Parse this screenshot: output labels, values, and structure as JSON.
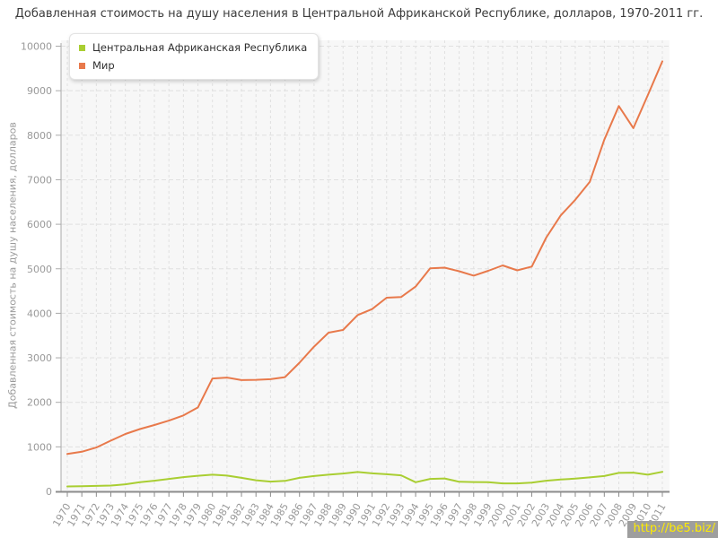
{
  "title": "Добавленная стоимость на душу населения в Центральной Африканской Республике, долларов, 1970-2011 гг.",
  "watermark": "http://be5.biz/",
  "chart_data": {
    "type": "line",
    "title": "Добавленная стоимость на душу населения в Центральной Африканской Республике, долларов, 1970-2011 гг.",
    "ylabel": "Добавленная стоимость на душу населения, долларов",
    "xlabel": "",
    "ylim": [
      0,
      10000
    ],
    "yticks": [
      0,
      1000,
      2000,
      3000,
      4000,
      5000,
      6000,
      7000,
      8000,
      9000,
      10000
    ],
    "grid": true,
    "legend_position": "top-left",
    "x": [
      1970,
      1971,
      1972,
      1973,
      1974,
      1975,
      1976,
      1977,
      1978,
      1979,
      1980,
      1981,
      1982,
      1983,
      1984,
      1985,
      1986,
      1987,
      1988,
      1989,
      1990,
      1991,
      1992,
      1993,
      1994,
      1995,
      1996,
      1997,
      1998,
      1999,
      2000,
      2001,
      2002,
      2003,
      2004,
      2005,
      2006,
      2007,
      2008,
      2009,
      2010,
      2011
    ],
    "series": [
      {
        "name": "Центральная Африканская Республика",
        "color": "#a9ce32",
        "values": [
          110,
          115,
          122,
          130,
          160,
          205,
          240,
          280,
          320,
          350,
          375,
          355,
          305,
          250,
          220,
          235,
          305,
          345,
          375,
          400,
          435,
          405,
          385,
          360,
          205,
          280,
          290,
          215,
          210,
          205,
          180,
          180,
          195,
          240,
          265,
          285,
          315,
          345,
          415,
          420,
          375,
          440
        ]
      },
      {
        "name": "Мир",
        "color": "#e8794b",
        "values": [
          840,
          890,
          985,
          1140,
          1290,
          1400,
          1490,
          1590,
          1705,
          1885,
          2535,
          2555,
          2500,
          2505,
          2520,
          2565,
          2890,
          3250,
          3565,
          3625,
          3960,
          4095,
          4350,
          4365,
          4600,
          5010,
          5025,
          4945,
          4845,
          4955,
          5075,
          4965,
          5050,
          5700,
          6200,
          6550,
          6950,
          7900,
          8655,
          8160,
          8900,
          9660
        ]
      }
    ],
    "plot_bg_color": "#f7f7f7",
    "gridline_color": "#e0e0e0",
    "axis_color": "#8c8c8c",
    "tick_label_color": "#999999"
  }
}
